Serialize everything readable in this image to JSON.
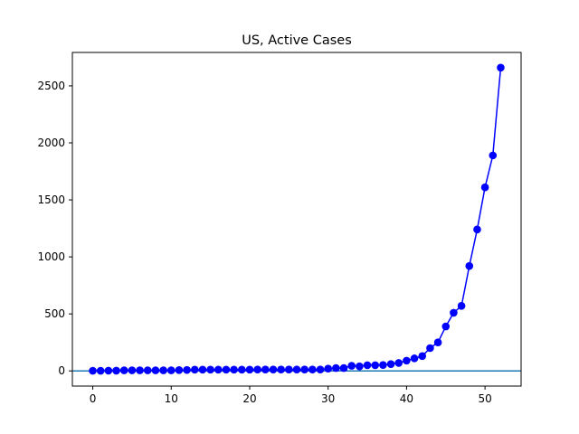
{
  "chart_data": {
    "type": "line",
    "title": "US, Active Cases",
    "xlabel": "",
    "ylabel": "",
    "xlim": [
      -2.6,
      54.6
    ],
    "ylim": [
      -133,
      2793
    ],
    "xticks": [
      0,
      10,
      20,
      30,
      40,
      50
    ],
    "yticks": [
      0,
      500,
      1000,
      1500,
      2000,
      2500
    ],
    "grid": false,
    "baseline": 0,
    "colors": {
      "series": "#0000ff",
      "baseline": "#1f77b4",
      "axes": "#000000"
    },
    "series": [
      {
        "marker": "circle",
        "x": [
          0,
          1,
          2,
          3,
          4,
          5,
          6,
          7,
          8,
          9,
          10,
          11,
          12,
          13,
          14,
          15,
          16,
          17,
          18,
          19,
          20,
          21,
          22,
          23,
          24,
          25,
          26,
          27,
          28,
          29,
          30,
          31,
          32,
          33,
          34,
          35,
          36,
          37,
          38,
          39,
          40,
          41,
          42,
          43,
          44,
          45,
          46,
          47,
          48,
          49,
          50,
          51,
          52
        ],
        "values": [
          1,
          1,
          2,
          2,
          5,
          5,
          5,
          5,
          5,
          5,
          5,
          7,
          8,
          11,
          11,
          11,
          11,
          11,
          11,
          11,
          11,
          12,
          12,
          12,
          12,
          12,
          12,
          12,
          12,
          12,
          20,
          25,
          25,
          45,
          40,
          50,
          50,
          52,
          60,
          70,
          90,
          110,
          130,
          200,
          250,
          390,
          510,
          570,
          920,
          1240,
          1610,
          1890,
          2660
        ]
      }
    ]
  }
}
